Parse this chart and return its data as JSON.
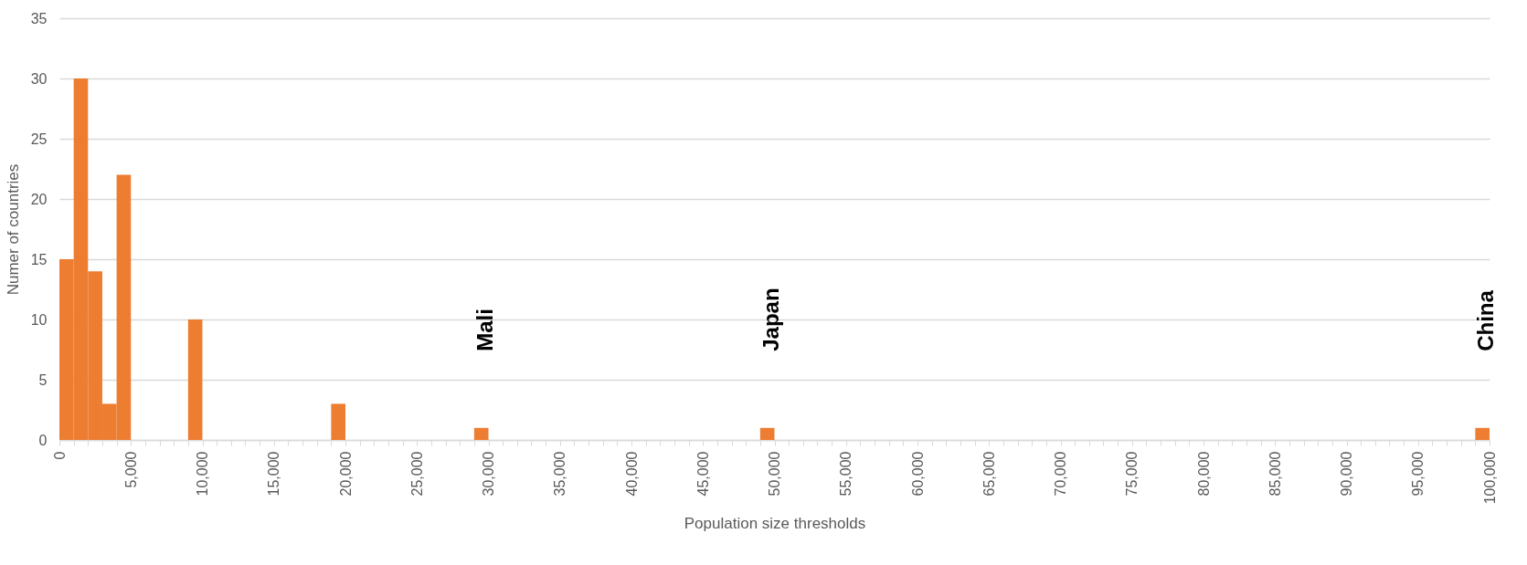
{
  "chart_data": {
    "type": "histogram",
    "xlabel": "Population size thresholds",
    "ylabel": "Numer of countries",
    "bins": [
      0,
      1000,
      2000,
      3000,
      4000,
      5000,
      9000,
      10000,
      19000,
      20000,
      29000,
      30000,
      49000,
      50000,
      99000,
      100000
    ],
    "values": [
      15,
      30,
      14,
      3,
      22,
      0,
      10,
      0,
      3,
      0,
      1,
      0,
      1,
      0,
      1
    ],
    "color": "#ed7d31",
    "xlim": [
      0,
      100000
    ],
    "xticks": [
      0,
      {
        "value": 1000,
        "label": null
      },
      {
        "value": 2000,
        "label": null
      },
      {
        "value": 3000,
        "label": null
      },
      {
        "value": 4000,
        "label": null
      },
      {
        "value": 5000,
        "label": "5,000"
      },
      {
        "value": 6000,
        "label": null
      },
      {
        "value": 7000,
        "label": null
      },
      {
        "value": 8000,
        "label": null
      },
      {
        "value": 9000,
        "label": null
      },
      {
        "value": 10000,
        "label": "10,000"
      },
      {
        "value": 11000,
        "label": null
      },
      {
        "value": 12000,
        "label": null
      },
      {
        "value": 13000,
        "label": null
      },
      {
        "value": 14000,
        "label": null
      },
      {
        "value": 15000,
        "label": "15,000"
      },
      {
        "value": 16000,
        "label": null
      },
      {
        "value": 17000,
        "label": null
      },
      {
        "value": 18000,
        "label": null
      },
      {
        "value": 19000,
        "label": null
      },
      {
        "value": 20000,
        "label": "20,000"
      },
      {
        "value": 21000,
        "label": null
      },
      {
        "value": 22000,
        "label": null
      },
      {
        "value": 23000,
        "label": null
      },
      {
        "value": 24000,
        "label": null
      },
      {
        "value": 25000,
        "label": "25,000"
      },
      {
        "value": 26000,
        "label": null
      },
      {
        "value": 27000,
        "label": null
      },
      {
        "value": 28000,
        "label": null
      },
      {
        "value": 29000,
        "label": null
      },
      {
        "value": 30000,
        "label": "30,000"
      },
      {
        "value": 31000,
        "label": null
      },
      {
        "value": 32000,
        "label": null
      },
      {
        "value": 33000,
        "label": null
      },
      {
        "value": 34000,
        "label": null
      },
      {
        "value": 35000,
        "label": "35,000"
      },
      {
        "value": 36000,
        "label": null
      },
      {
        "value": 37000,
        "label": null
      },
      {
        "value": 38000,
        "label": null
      },
      {
        "value": 39000,
        "label": null
      },
      {
        "value": 40000,
        "label": "40,000"
      },
      {
        "value": 41000,
        "label": null
      },
      {
        "value": 42000,
        "label": null
      },
      {
        "value": 43000,
        "label": null
      },
      {
        "value": 44000,
        "label": null
      },
      {
        "value": 45000,
        "label": "45,000"
      },
      {
        "value": 46000,
        "label": null
      },
      {
        "value": 47000,
        "label": null
      },
      {
        "value": 48000,
        "label": null
      },
      {
        "value": 49000,
        "label": null
      },
      {
        "value": 50000,
        "label": "50,000"
      },
      {
        "value": 51000,
        "label": null
      },
      {
        "value": 52000,
        "label": null
      },
      {
        "value": 53000,
        "label": null
      },
      {
        "value": 54000,
        "label": null
      },
      {
        "value": 55000,
        "label": "55,000"
      },
      {
        "value": 56000,
        "label": null
      },
      {
        "value": 57000,
        "label": null
      },
      {
        "value": 58000,
        "label": null
      },
      {
        "value": 59000,
        "label": null
      },
      {
        "value": 60000,
        "label": "60,000"
      },
      {
        "value": 61000,
        "label": null
      },
      {
        "value": 62000,
        "label": null
      },
      {
        "value": 63000,
        "label": null
      },
      {
        "value": 64000,
        "label": null
      },
      {
        "value": 65000,
        "label": "65,000"
      },
      {
        "value": 66000,
        "label": null
      },
      {
        "value": 67000,
        "label": null
      },
      {
        "value": 68000,
        "label": null
      },
      {
        "value": 69000,
        "label": null
      },
      {
        "value": 70000,
        "label": "70,000"
      },
      {
        "value": 71000,
        "label": null
      },
      {
        "value": 72000,
        "label": null
      },
      {
        "value": 73000,
        "label": null
      },
      {
        "value": 74000,
        "label": null
      },
      {
        "value": 75000,
        "label": "75,000"
      },
      {
        "value": 76000,
        "label": null
      },
      {
        "value": 77000,
        "label": null
      },
      {
        "value": 78000,
        "label": null
      },
      {
        "value": 79000,
        "label": null
      },
      {
        "value": 80000,
        "label": "80,000"
      },
      {
        "value": 81000,
        "label": null
      },
      {
        "value": 82000,
        "label": null
      },
      {
        "value": 83000,
        "label": null
      },
      {
        "value": 84000,
        "label": null
      },
      {
        "value": 85000,
        "label": "85,000"
      },
      {
        "value": 86000,
        "label": null
      },
      {
        "value": 87000,
        "label": null
      },
      {
        "value": 88000,
        "label": null
      },
      {
        "value": 89000,
        "label": null
      },
      {
        "value": 90000,
        "label": "90,000"
      },
      {
        "value": 91000,
        "label": null
      },
      {
        "value": 92000,
        "label": null
      },
      {
        "value": 93000,
        "label": null
      },
      {
        "value": 94000,
        "label": null
      },
      {
        "value": 95000,
        "label": "95,000"
      },
      {
        "value": 96000,
        "label": null
      },
      {
        "value": 97000,
        "label": null
      },
      {
        "value": 98000,
        "label": null
      },
      {
        "value": 99000,
        "label": null
      },
      {
        "value": 100000,
        "label": "100,000"
      }
    ],
    "ylim": [
      0,
      35
    ],
    "yticks": [
      0,
      5,
      10,
      15,
      20,
      25,
      30,
      35
    ],
    "grid": "y",
    "annotations": [
      "Mali",
      "Japan",
      "China"
    ]
  }
}
